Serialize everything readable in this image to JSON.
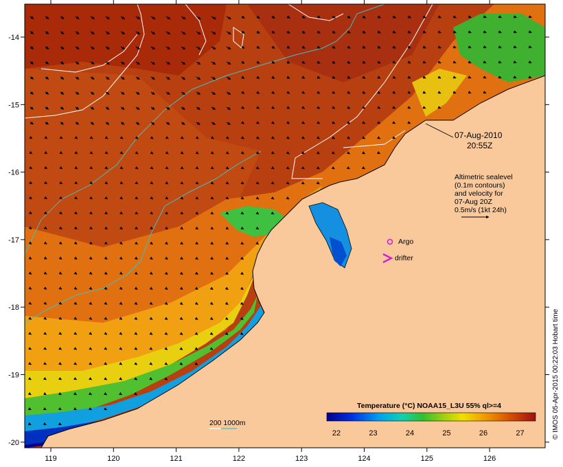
{
  "map": {
    "lon_ticks": [
      "119",
      "120",
      "121",
      "122",
      "123",
      "124",
      "125",
      "126"
    ],
    "lat_ticks": [
      "-14",
      "-15",
      "-16",
      "-17",
      "-18",
      "-19",
      "-20"
    ]
  },
  "annotations": {
    "date": "07-Aug-2010",
    "time": "20:55Z",
    "altimetry": [
      "Altimetric sealevel",
      "(0.1m contours)",
      "and velocity for",
      "07-Aug 20Z",
      "0.5m/s (1kt 24h)"
    ],
    "argo": "Argo",
    "drifter": "drifter",
    "depth_contours": "200  1000m"
  },
  "colorbar": {
    "title": "Temperature (°C) NOAA15_L3U 55% ql>=4",
    "ticks": [
      "22",
      "23",
      "24",
      "25",
      "26",
      "27"
    ]
  },
  "credit": "© IMOS 05-Apr-2015 00:22:03 Hobart time",
  "colors": {
    "land": "#f9c99c",
    "warm_sst": "#b84010",
    "argo": "#d020d0",
    "drifter": "#d020d0",
    "depth_line": "#40c0c0"
  },
  "icons": [
    "argo-circle-icon",
    "drifter-chevron-icon",
    "velocity-arrow-icon"
  ]
}
